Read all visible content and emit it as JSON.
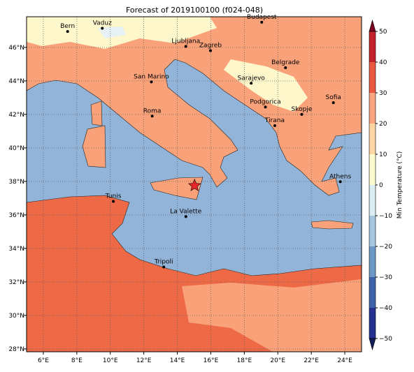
{
  "map": {
    "title": "Forecast of 2019100100 (f024-048)",
    "xlim": [
      5,
      25
    ],
    "ylim": [
      27.83,
      47.83
    ],
    "xticks": [
      {
        "value": 6,
        "label": "6°E"
      },
      {
        "value": 8,
        "label": "8°E"
      },
      {
        "value": 10,
        "label": "10°E"
      },
      {
        "value": 12,
        "label": "12°E"
      },
      {
        "value": 14,
        "label": "14°E"
      },
      {
        "value": 16,
        "label": "16°E"
      },
      {
        "value": 18,
        "label": "18°E"
      },
      {
        "value": 20,
        "label": "20°E"
      },
      {
        "value": 22,
        "label": "22°E"
      },
      {
        "value": 24,
        "label": "24°E"
      }
    ],
    "yticks": [
      {
        "value": 28,
        "label": "28°N"
      },
      {
        "value": 30,
        "label": "30°N"
      },
      {
        "value": 32,
        "label": "32°N"
      },
      {
        "value": 34,
        "label": "34°N"
      },
      {
        "value": 36,
        "label": "36°N"
      },
      {
        "value": 38,
        "label": "38°N"
      },
      {
        "value": 40,
        "label": "40°N"
      },
      {
        "value": 42,
        "label": "42°N"
      },
      {
        "value": 44,
        "label": "44°N"
      },
      {
        "value": 46,
        "label": "46°N"
      }
    ],
    "grid": true,
    "cities": [
      {
        "name": "Bern",
        "lon": 7.45,
        "lat": 46.95
      },
      {
        "name": "Vaduz",
        "lon": 9.52,
        "lat": 47.14
      },
      {
        "name": "Budapest",
        "lon": 19.04,
        "lat": 47.5
      },
      {
        "name": "Ljubljana",
        "lon": 14.51,
        "lat": 46.06
      },
      {
        "name": "Zagreb",
        "lon": 15.98,
        "lat": 45.81
      },
      {
        "name": "Belgrade",
        "lon": 20.46,
        "lat": 44.79
      },
      {
        "name": "San Marino",
        "lon": 12.45,
        "lat": 43.94
      },
      {
        "name": "Sarajevo",
        "lon": 18.41,
        "lat": 43.86
      },
      {
        "name": "Sofia",
        "lon": 23.32,
        "lat": 42.7
      },
      {
        "name": "Roma",
        "lon": 12.5,
        "lat": 41.9
      },
      {
        "name": "Podgorica",
        "lon": 19.26,
        "lat": 42.44
      },
      {
        "name": "Skopje",
        "lon": 21.43,
        "lat": 42.0
      },
      {
        "name": "Tirana",
        "lon": 19.82,
        "lat": 41.33
      },
      {
        "name": "Athens",
        "lon": 23.73,
        "lat": 37.98
      },
      {
        "name": "Tunis",
        "lon": 10.18,
        "lat": 36.81
      },
      {
        "name": "La Valette",
        "lon": 14.51,
        "lat": 35.9
      },
      {
        "name": "Tripoli",
        "lon": 13.19,
        "lat": 32.89
      }
    ],
    "marker": {
      "lon": 15.03,
      "lat": 37.75,
      "color": "#e8262b"
    },
    "colorbar": {
      "label": "Min Temperature (°C)",
      "lim": [
        -50,
        50
      ],
      "ticks": [
        {
          "value": -50,
          "label": "−50"
        },
        {
          "value": -40,
          "label": "−40"
        },
        {
          "value": -30,
          "label": "−30"
        },
        {
          "value": -20,
          "label": "−20"
        },
        {
          "value": -10,
          "label": "−10"
        },
        0,
        10,
        20,
        30,
        40,
        50
      ],
      "colors": [
        "#24308f",
        "#3d63aa",
        "#6c98c6",
        "#a5c8e0",
        "#daeef3",
        "#fefad0",
        "#fdd6a4",
        "#f9a57d",
        "#e9583f",
        "#c3222c"
      ],
      "extend_colors": [
        "#121d5c",
        "#7b0121"
      ]
    }
  }
}
